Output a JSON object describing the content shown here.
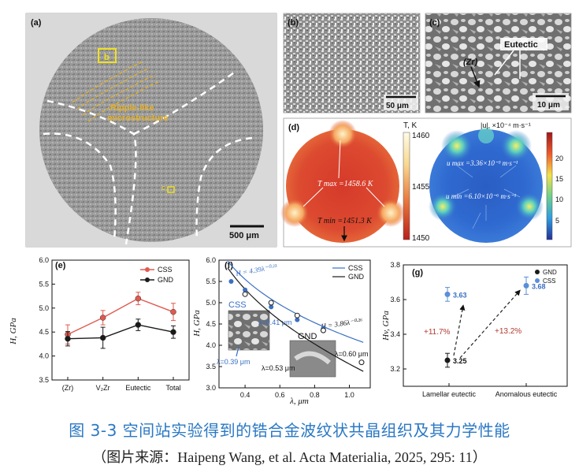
{
  "panels": {
    "a": {
      "label": "(a)",
      "box_label": "b",
      "c_label": "c",
      "annotation_line1": "Ripple-like",
      "annotation_line2": "microstructure",
      "scale_bar": "500 μm"
    },
    "b": {
      "label": "(b)",
      "scale_bar": "50 μm"
    },
    "c": {
      "label": "(c)",
      "eutectic_label": "Eutectic",
      "zr_label": "(Zr)",
      "scale_bar": "10 μm"
    },
    "d": {
      "label": "(d)",
      "temp_unit": "T, K",
      "temp_ticks": [
        "1460",
        "1455",
        "1450"
      ],
      "tmax": "T max =1458.6 K",
      "tmin": "T min =1451.3 K",
      "vel_unit": "|u|, ×10⁻⁴ m·s⁻¹",
      "vel_ticks": [
        "20",
        "15",
        "10",
        "5"
      ],
      "umax": "u max =3.36×10⁻³ m·s⁻¹",
      "umin": "u min =6.10×10⁻⁶ m·s⁻¹"
    },
    "e": {
      "label": "(e)",
      "ylabel": "H, GPa"
    },
    "f": {
      "label": "(f)",
      "ylabel": "H, GPa",
      "xlabel": "λ, μm",
      "css_eq": "H = 4.39λ⁻⁰·²³",
      "gnd_eq": "H = 3.86λ⁻⁰·²⁶",
      "css_inset": "CSS",
      "gnd_inset": "GND",
      "lam1": "λ=0.41 μm",
      "lam2": "λ=0.39 μm",
      "lam3": "λ=0.53 μm",
      "lam4": "λ=0.60 μm"
    },
    "g": {
      "label": "(g)",
      "ylabel": "Hv, GPa",
      "pct1": "+11.7%",
      "pct2": "+13.2%"
    }
  },
  "chart_data": [
    {
      "type": "line",
      "id": "e",
      "categories": [
        "(Zr)",
        "V₂Zr",
        "Eutectic",
        "Total"
      ],
      "series": [
        {
          "name": "CSS",
          "values": [
            4.45,
            4.8,
            5.2,
            4.92
          ],
          "err": [
            0.2,
            0.15,
            0.13,
            0.18
          ],
          "color": "#e05a4e"
        },
        {
          "name": "GND",
          "values": [
            4.36,
            4.38,
            4.65,
            4.5
          ],
          "err": [
            0.15,
            0.22,
            0.12,
            0.13
          ],
          "color": "#1a1a1a"
        }
      ],
      "ylabel": "H, GPa",
      "ylim": [
        3.5,
        6.0
      ],
      "yticks": [
        "3.5",
        "4.0",
        "4.5",
        "5.0",
        "5.5",
        "6.0"
      ],
      "legend": "top-right"
    },
    {
      "type": "scatter",
      "id": "f",
      "series": [
        {
          "name": "CSS",
          "x": [
            0.32,
            0.4,
            0.55,
            0.7,
            0.85
          ],
          "y": [
            5.5,
            5.3,
            4.9,
            4.6,
            4.4
          ],
          "color": "#3a6fc4"
        },
        {
          "name": "GND",
          "x": [
            0.4,
            0.55,
            0.7,
            0.85,
            1.07
          ],
          "y": [
            5.2,
            5.0,
            4.7,
            4.35,
            3.6
          ],
          "color": "#1a1a1a"
        }
      ],
      "xlabel": "λ, μm",
      "ylabel": "H, GPa",
      "xlim": [
        0.25,
        1.12
      ],
      "ylim": [
        3.0,
        6.0
      ],
      "xticks": [
        "0.4",
        "0.6",
        "0.8",
        "1.0"
      ],
      "yticks": [
        "3.0",
        "3.5",
        "4.0",
        "4.5",
        "5.0",
        "5.5",
        "6.0"
      ],
      "legend": "top-right"
    },
    {
      "type": "scatter",
      "id": "g",
      "categories": [
        "Lamellar eutectic",
        "Anomalous eutectic"
      ],
      "series": [
        {
          "name": "GND",
          "values": [
            3.25
          ],
          "err": [
            0.04
          ],
          "color": "#1a1a1a"
        },
        {
          "name": "CSS",
          "values": [
            3.63,
            3.68
          ],
          "err": [
            0.04,
            0.05
          ],
          "color": "#5b8fd6"
        }
      ],
      "value_labels": [
        "3.25",
        "3.63",
        "3.68"
      ],
      "ylabel": "Hv, GPa",
      "ylim": [
        3.1,
        3.8
      ],
      "yticks": [
        "3.2",
        "3.4",
        "3.6",
        "3.8"
      ],
      "legend": "top-right"
    }
  ],
  "caption": {
    "title": "图 3-3 空间站实验得到的锆合金波纹状共晶组织及其力学性能",
    "source": "（图片来源：Haipeng Wang, et al. Acta Materialia, 2025, 295: 11）"
  }
}
